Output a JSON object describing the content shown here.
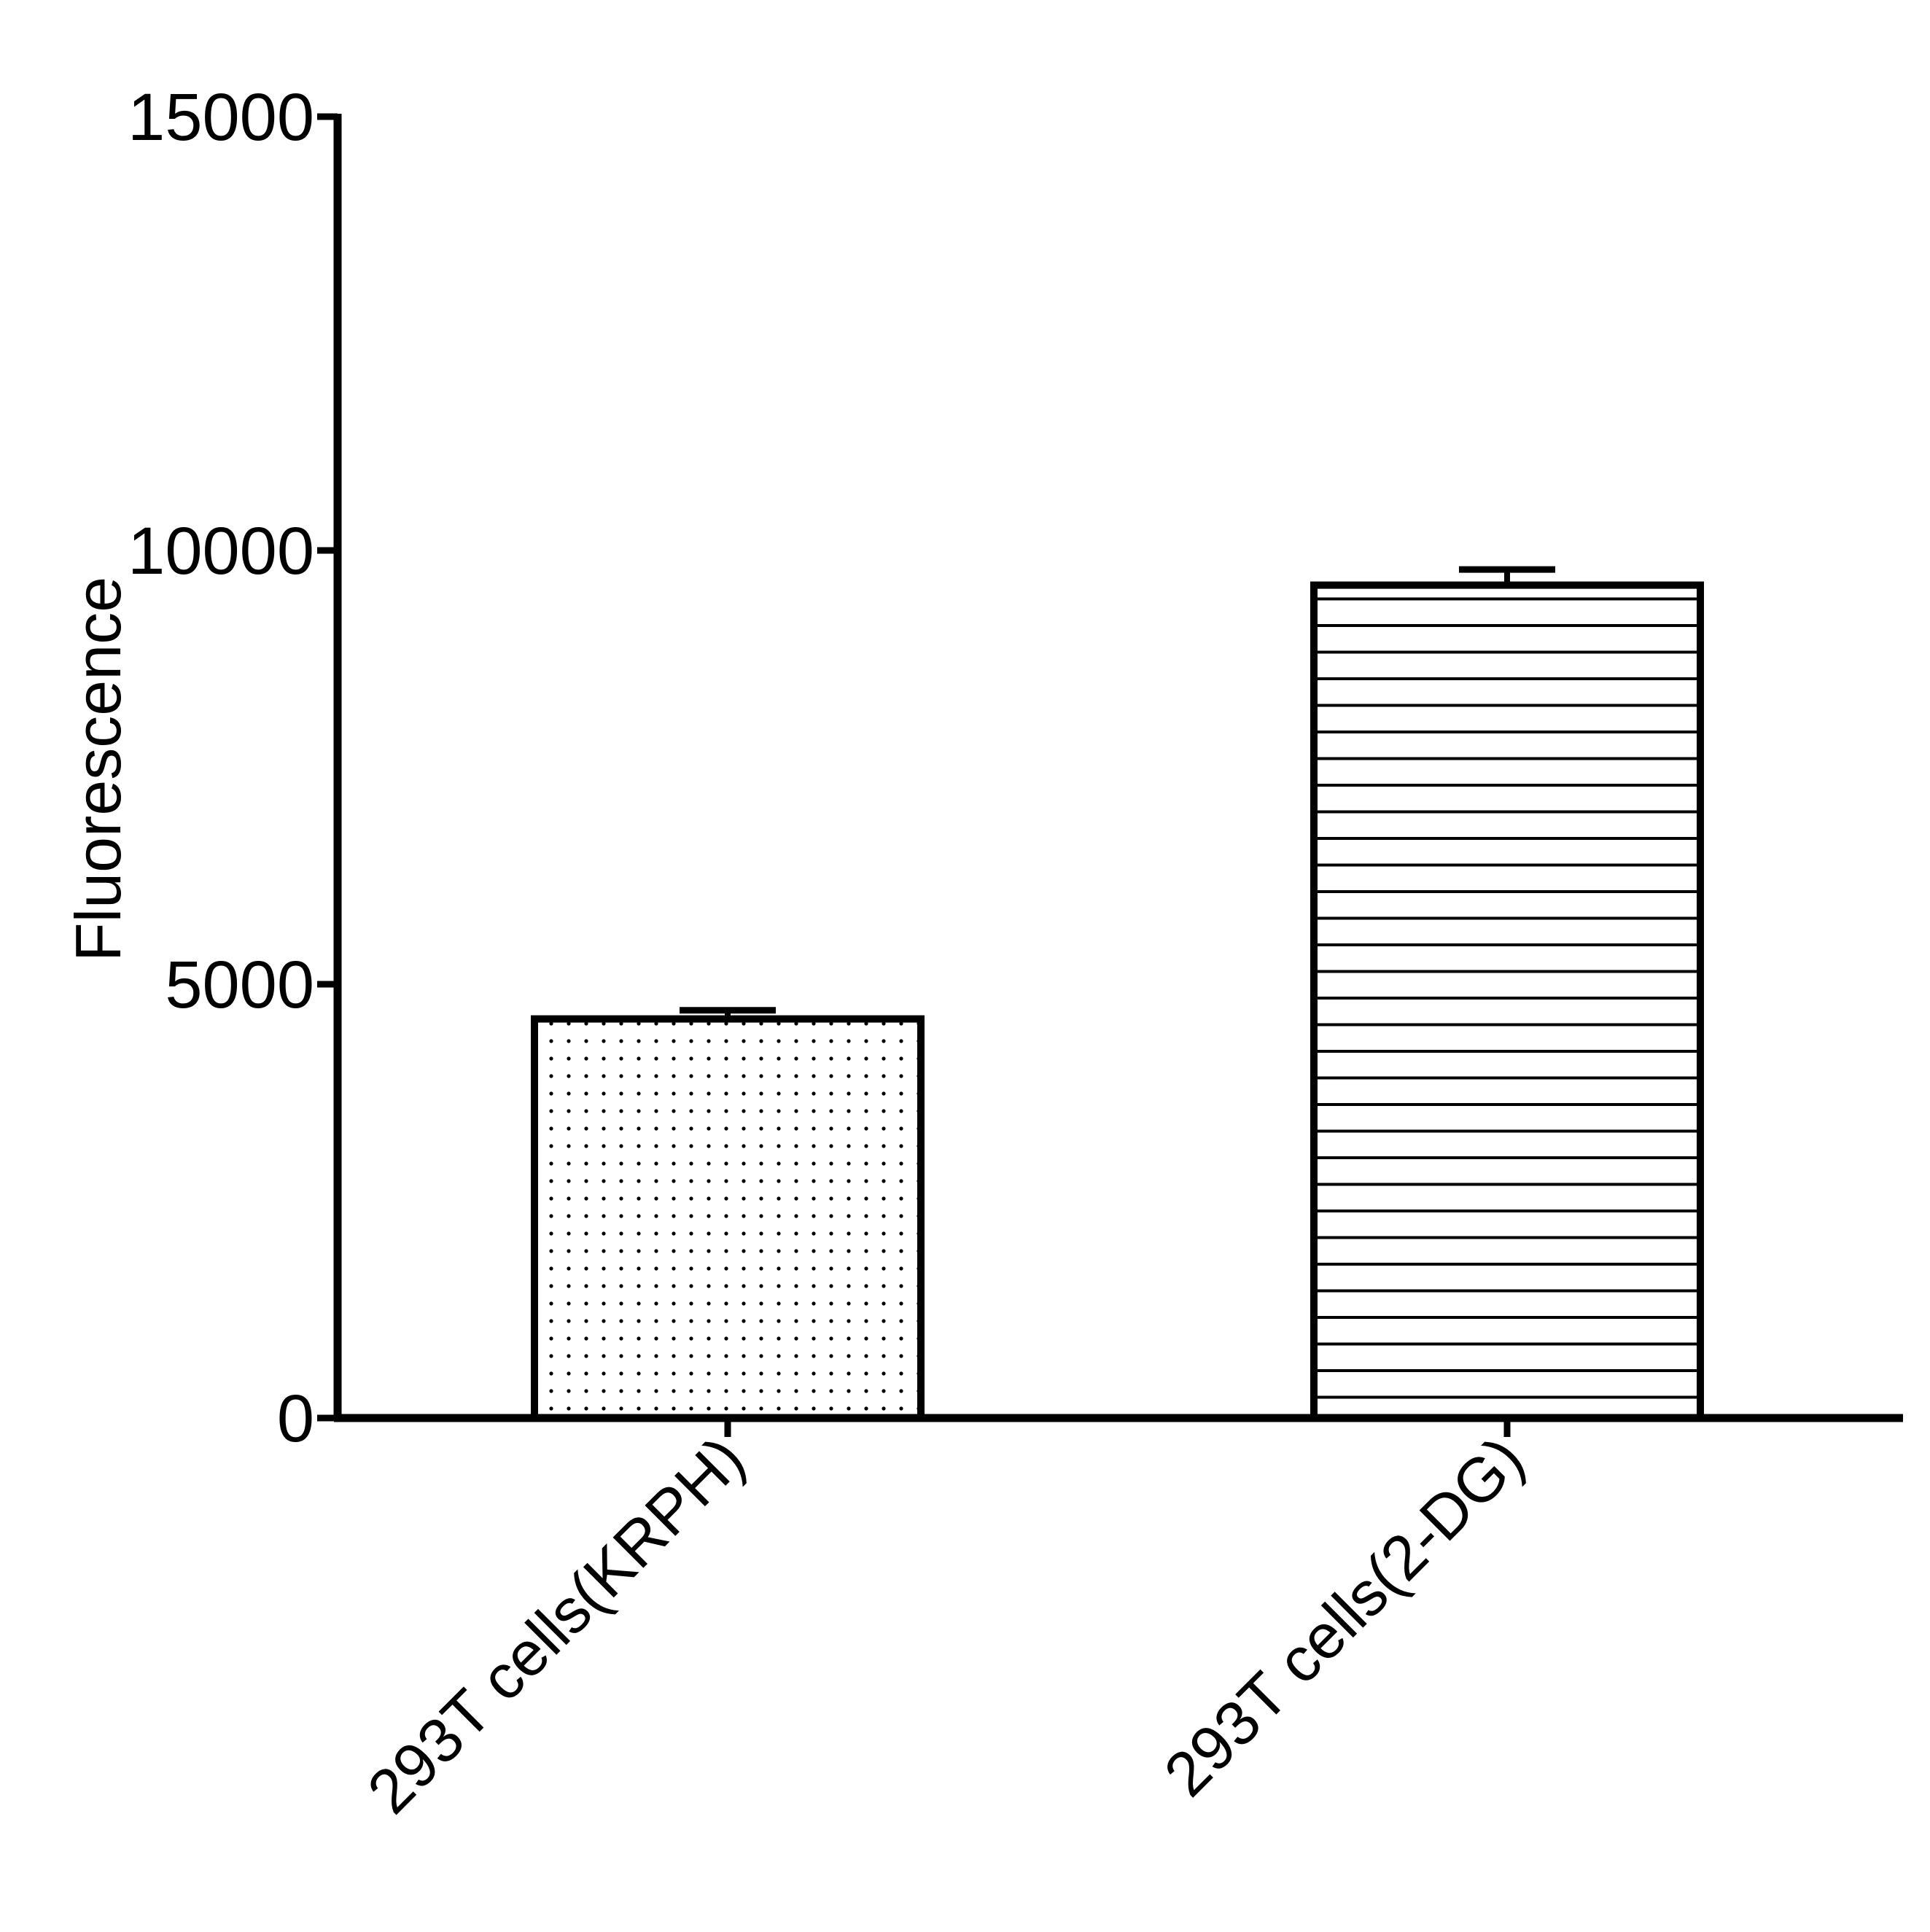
{
  "chart_data": {
    "type": "bar",
    "categories": [
      "293T cells(KRPH)",
      "293T cells(2-DG)"
    ],
    "values": [
      4600,
      9600
    ],
    "error": [
      100,
      180
    ],
    "patterns": [
      "dots",
      "horizontal-lines"
    ],
    "ylabel": "Fluorescence",
    "xlabel": "",
    "ylim": [
      0,
      15000
    ],
    "yticks": [
      {
        "value": 0,
        "label": "0"
      },
      {
        "value": 5000,
        "label": "5000"
      },
      {
        "value": 10000,
        "label": "10000"
      },
      {
        "value": 15000,
        "label": "15000"
      }
    ],
    "grid": false,
    "colors": {
      "stroke": "#000000",
      "fill": "#ffffff"
    }
  }
}
